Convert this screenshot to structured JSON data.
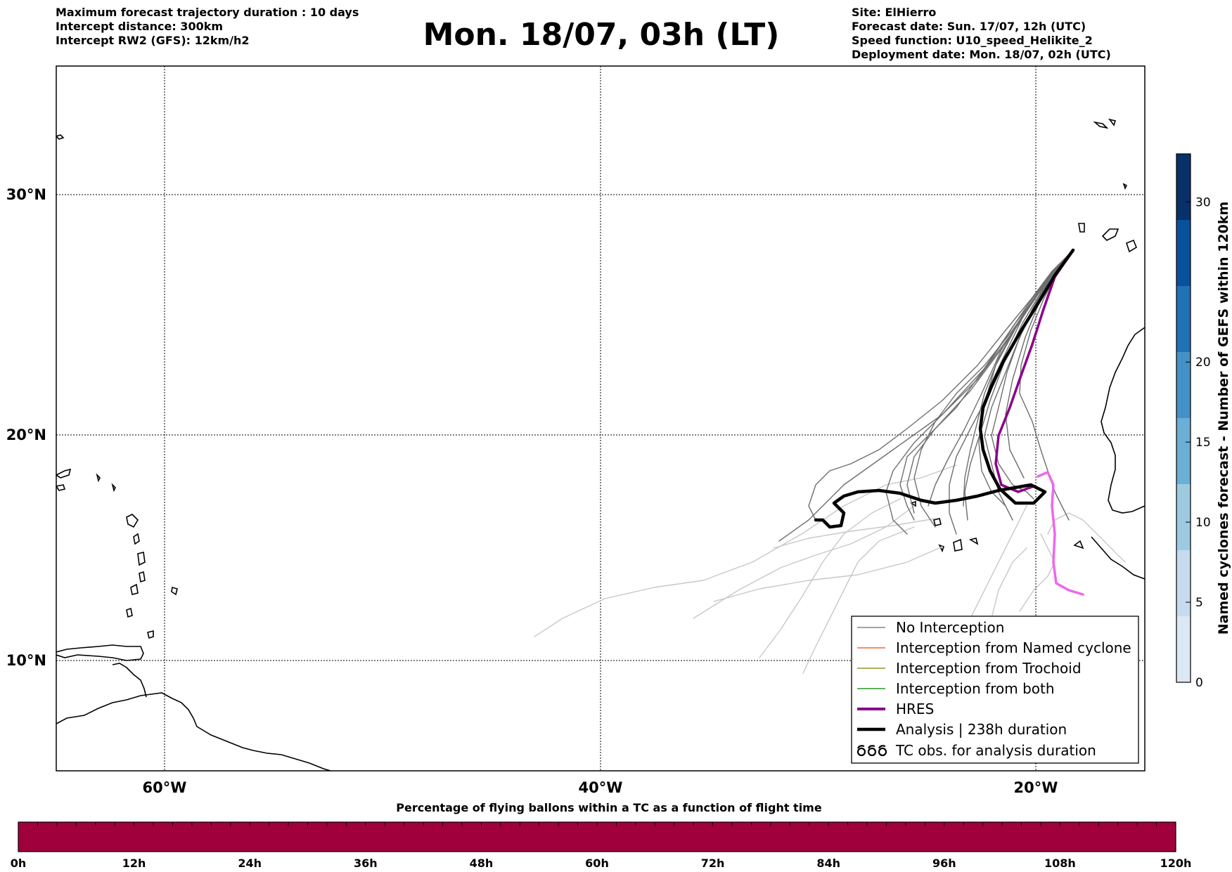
{
  "header_left": [
    "Maximum forecast trajectory duration : 10 days",
    "Intercept distance: 300km",
    "Intercept RW2 (GFS):  12km/h2"
  ],
  "title": "Mon. 18/07, 03h (LT)",
  "header_right": [
    "Site: ElHierro",
    "Forecast date: Sun. 17/07, 12h (UTC)",
    "Speed function: U10_speed_Helikite_2",
    "Deployment date: Mon. 18/07, 02h (UTC)"
  ],
  "map": {
    "lon_ticks": [
      "60°W",
      "40°W",
      "20°W"
    ],
    "lat_ticks": [
      "30°N",
      "20°N",
      "10°N"
    ],
    "grid": "dotted"
  },
  "legend": {
    "items": [
      {
        "label": "No Interception",
        "color": "#6e6e6e",
        "style": "thin"
      },
      {
        "label": "Interception from Named cyclone",
        "color": "#ff4500",
        "style": "thin"
      },
      {
        "label": "Interception from Trochoid",
        "color": "#808000",
        "style": "thin"
      },
      {
        "label": "Interception from both",
        "color": "#008000",
        "style": "thin"
      },
      {
        "label": "HRES",
        "color": "#8b008b",
        "style": "thick"
      },
      {
        "label": "Analysis | 238h duration",
        "color": "#000000",
        "style": "thick"
      },
      {
        "label": "TC obs. for analysis duration",
        "color": "#000000",
        "style": "symbol"
      }
    ],
    "placement": "bottom-right"
  },
  "colorbar_right": {
    "label": "Named cyclones forecast - Number of GEFS within 120km",
    "ticks": [
      "0",
      "5",
      "10",
      "15",
      "20",
      "30"
    ],
    "colors": [
      "#dbe8f6",
      "#c6dbef",
      "#9ecae1",
      "#6baed6",
      "#4292c6",
      "#2171b5",
      "#08519c",
      "#08306b"
    ]
  },
  "colorbar_bottom": {
    "title": "Percentage of flying ballons within a TC as a function of flight time",
    "ticks": [
      "0h",
      "12h",
      "24h",
      "36h",
      "48h",
      "60h",
      "72h",
      "84h",
      "96h",
      "108h",
      "120h"
    ],
    "color": "#a0003c"
  }
}
